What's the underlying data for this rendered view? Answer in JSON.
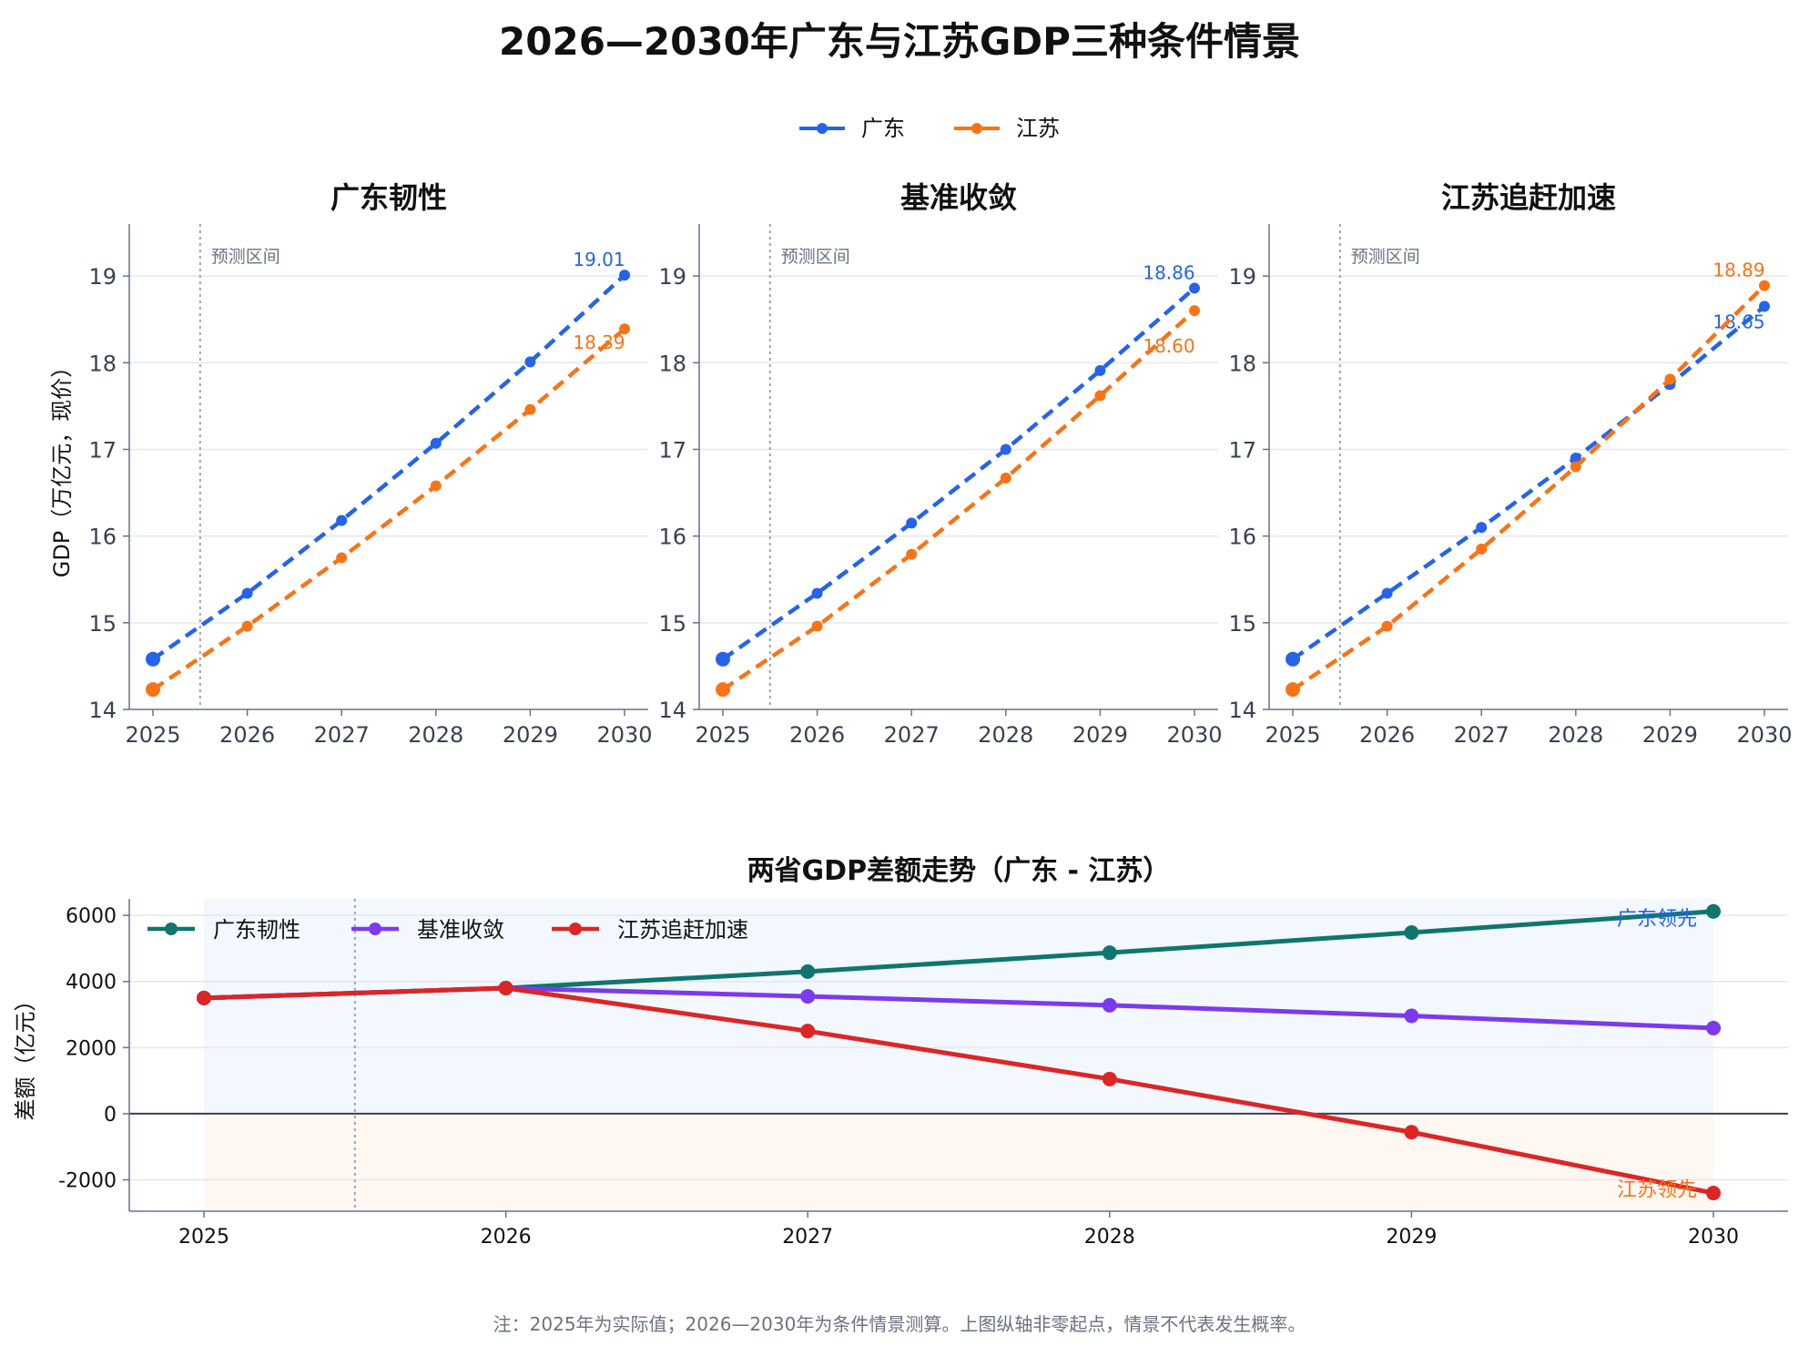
{
  "title": "2026—2030年广东与江苏GDP三种条件情景",
  "legend_top": [
    {
      "name": "广东",
      "color": "#2563eb"
    },
    {
      "name": "江苏",
      "color": "#f97316"
    }
  ],
  "footnote": "注：2025年为实际值；2026—2030年为条件情景测算。上图纵轴非零起点，情景不代表发生概率。",
  "chart_data": [
    {
      "type": "line",
      "title": "广东韧性",
      "ylabel": "GDP（万亿元，现价）",
      "x": [
        2025,
        2026,
        2027,
        2028,
        2029,
        2030
      ],
      "ylim": [
        14,
        19.6
      ],
      "yticks": [
        14,
        15,
        16,
        17,
        18,
        19
      ],
      "forecast_label": "预测区间",
      "series": [
        {
          "name": "广东",
          "color": "#2563eb",
          "values": [
            14.58,
            15.34,
            16.18,
            17.07,
            18.01,
            19.01
          ]
        },
        {
          "name": "江苏",
          "color": "#f97316",
          "values": [
            14.23,
            14.96,
            15.75,
            16.58,
            17.46,
            18.39
          ]
        }
      ],
      "end_labels": [
        "19.01",
        "18.39"
      ]
    },
    {
      "type": "line",
      "title": "基准收敛",
      "ylabel": "",
      "x": [
        2025,
        2026,
        2027,
        2028,
        2029,
        2030
      ],
      "ylim": [
        14,
        19.6
      ],
      "yticks": [
        14,
        15,
        16,
        17,
        18,
        19
      ],
      "forecast_label": "预测区间",
      "series": [
        {
          "name": "广东",
          "color": "#2563eb",
          "values": [
            14.58,
            15.34,
            16.15,
            17.0,
            17.91,
            18.86
          ]
        },
        {
          "name": "江苏",
          "color": "#f97316",
          "values": [
            14.23,
            14.96,
            15.79,
            16.67,
            17.62,
            18.6
          ]
        }
      ],
      "end_labels": [
        "18.86",
        "18.60"
      ]
    },
    {
      "type": "line",
      "title": "江苏追赶加速",
      "ylabel": "",
      "x": [
        2025,
        2026,
        2027,
        2028,
        2029,
        2030
      ],
      "ylim": [
        14,
        19.6
      ],
      "yticks": [
        14,
        15,
        16,
        17,
        18,
        19
      ],
      "forecast_label": "预测区间",
      "series": [
        {
          "name": "广东",
          "color": "#2563eb",
          "values": [
            14.58,
            15.34,
            16.1,
            16.9,
            17.75,
            18.65
          ]
        },
        {
          "name": "江苏",
          "color": "#f97316",
          "values": [
            14.23,
            14.96,
            15.85,
            16.8,
            17.81,
            18.89
          ]
        }
      ],
      "end_labels": [
        "18.65",
        "18.89"
      ]
    },
    {
      "type": "line",
      "title": "两省GDP差额走势（广东 - 江苏）",
      "ylabel": "差额（亿元）",
      "x": [
        2025,
        2026,
        2027,
        2028,
        2029,
        2030
      ],
      "ylim": [
        -2950,
        6500
      ],
      "yticks": [
        -2000,
        0,
        2000,
        4000,
        6000
      ],
      "legend_position": "top-left",
      "series": [
        {
          "name": "广东韧性",
          "color": "#0f766e",
          "values": [
            3500,
            3800,
            4300,
            4870,
            5480,
            6120
          ]
        },
        {
          "name": "基准收敛",
          "color": "#7c3aed",
          "values": [
            3500,
            3800,
            3550,
            3280,
            2960,
            2590
          ]
        },
        {
          "name": "江苏追赶加速",
          "color": "#dc2626",
          "values": [
            3500,
            3800,
            2500,
            1050,
            -560,
            -2400
          ]
        }
      ],
      "region_labels": [
        {
          "text": "广东领先",
          "color": "#2563eb"
        },
        {
          "text": "江苏领先",
          "color": "#f97316"
        }
      ]
    }
  ]
}
